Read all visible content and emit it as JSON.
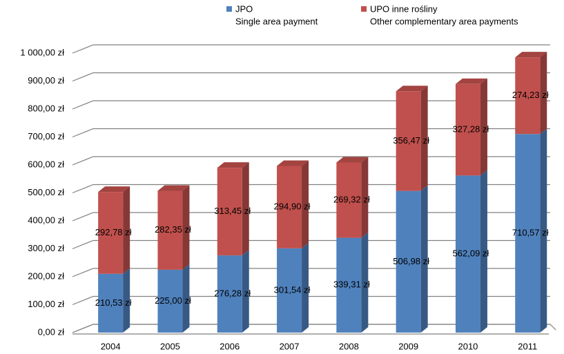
{
  "chart_data": {
    "type": "bar3d_stacked",
    "categories": [
      "2004",
      "2005",
      "2006",
      "2007",
      "2008",
      "2009",
      "2010",
      "2011"
    ],
    "series": [
      {
        "name": "JPO",
        "subtitle": "Single area payment",
        "color": "#4f81bd",
        "values": [
          210.53,
          225.0,
          276.28,
          301.54,
          339.31,
          506.98,
          562.09,
          710.57
        ],
        "value_labels": [
          "210,53 zł",
          "225,00 zł",
          "276,28 zł",
          "301,54 zł",
          "339,31 zł",
          "506,98 zł",
          "562,09 zł",
          "710,57 zł"
        ]
      },
      {
        "name": "UPO inne rośliny",
        "subtitle": "Other complementary area payments",
        "color": "#c0504d",
        "values": [
          292.78,
          282.35,
          313.45,
          294.9,
          269.32,
          356.47,
          327.28,
          274.23
        ],
        "value_labels": [
          "292,78 zł",
          "282,35 zł",
          "313,45 zł",
          "294,90 zł",
          "269,32 zł",
          "356,47 zł",
          "327,28 zł",
          "274,23 zł"
        ]
      }
    ],
    "ylim": [
      0,
      1000
    ],
    "yticks": [
      {
        "value": 0,
        "label": "0,00 zł"
      },
      {
        "value": 100,
        "label": "100,00 zł"
      },
      {
        "value": 200,
        "label": "200,00 zł"
      },
      {
        "value": 300,
        "label": "300,00 zł"
      },
      {
        "value": 400,
        "label": "400,00 zł"
      },
      {
        "value": 500,
        "label": "500,00 zł"
      },
      {
        "value": 600,
        "label": "600,00 zł"
      },
      {
        "value": 700,
        "label": "700,00 zł"
      },
      {
        "value": 800,
        "label": "800,00 zł"
      },
      {
        "value": 900,
        "label": "900,00 zł"
      },
      {
        "value": 1000,
        "label": "1 000,00 zł"
      }
    ],
    "grid": true
  }
}
